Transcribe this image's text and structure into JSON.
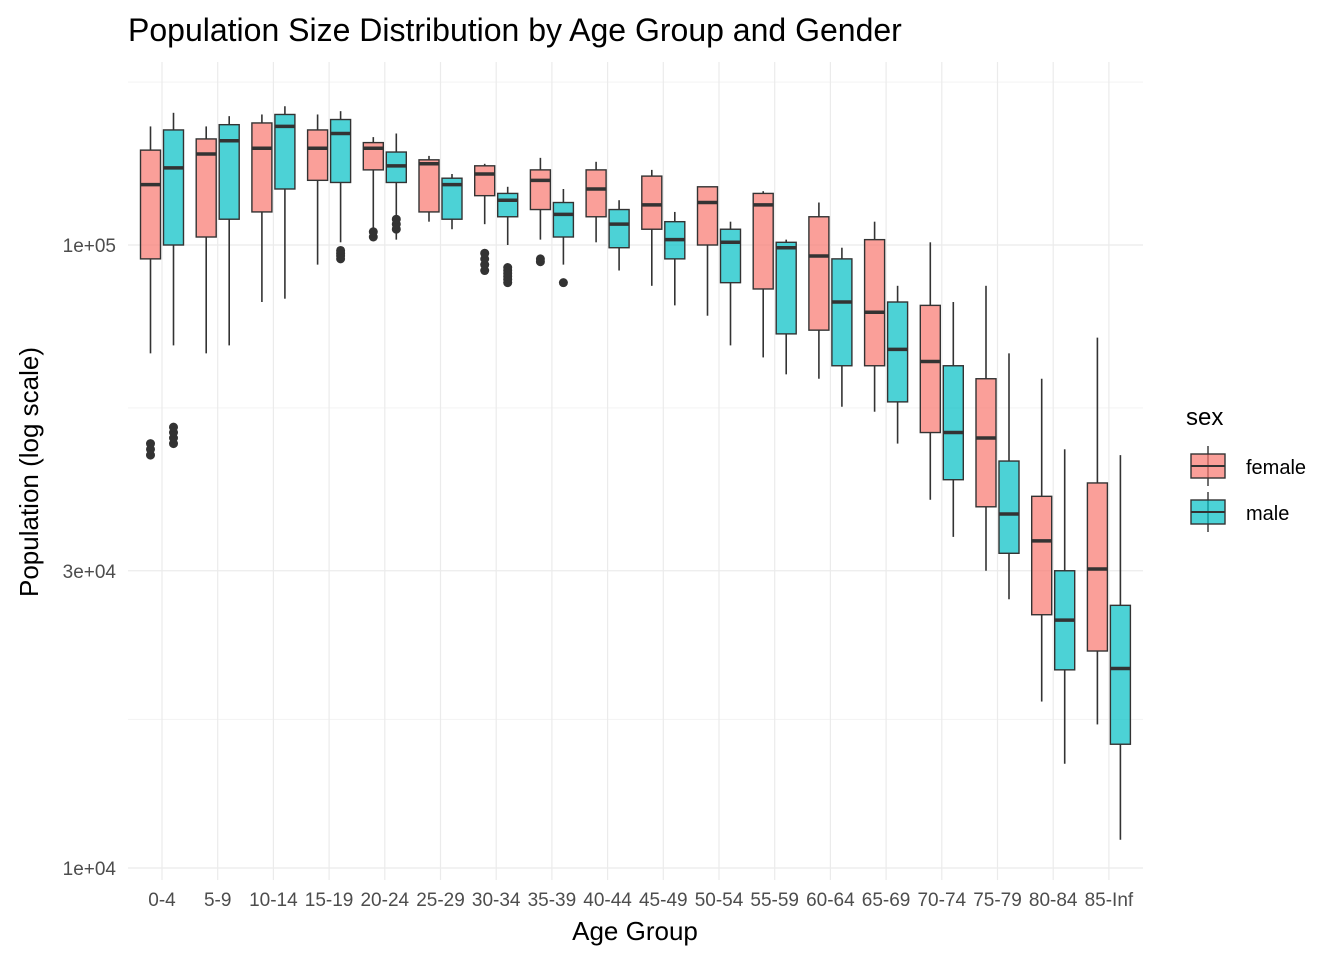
{
  "chart_data": {
    "type": "boxplot",
    "title": "Population Size Distribution by Age Group and Gender",
    "xlabel": "Age Group",
    "ylabel": "Population (log scale)",
    "y_scale": "log10",
    "y_ticks": [
      10000,
      30000,
      100000
    ],
    "y_tick_labels": [
      "1e+04",
      "3e+04",
      "1e+05"
    ],
    "ylim": [
      9800,
      170000
    ],
    "grid": true,
    "legend": {
      "title": "sex",
      "position": "right"
    },
    "categories": [
      "0-4",
      "5-9",
      "10-14",
      "15-19",
      "20-24",
      "25-29",
      "30-34",
      "35-39",
      "40-44",
      "45-49",
      "50-54",
      "55-59",
      "60-64",
      "65-69",
      "70-74",
      "75-79",
      "80-84",
      "85-Inf"
    ],
    "series": [
      {
        "name": "female",
        "color": "#F8766D",
        "boxes": [
          {
            "lower_whisker": 67000,
            "q1": 95000,
            "median": 125000,
            "q3": 142000,
            "upper_whisker": 155000,
            "outliers": [
              46000,
              47000,
              48000
            ]
          },
          {
            "lower_whisker": 67000,
            "q1": 103000,
            "median": 140000,
            "q3": 148000,
            "upper_whisker": 155000,
            "outliers": []
          },
          {
            "lower_whisker": 81000,
            "q1": 113000,
            "median": 143000,
            "q3": 157000,
            "upper_whisker": 162000,
            "outliers": []
          },
          {
            "lower_whisker": 93000,
            "q1": 127000,
            "median": 143000,
            "q3": 153000,
            "upper_whisker": 162000,
            "outliers": []
          },
          {
            "lower_whisker": 103000,
            "q1": 132000,
            "median": 143000,
            "q3": 146000,
            "upper_whisker": 149000,
            "outliers": [
              103000,
              105000
            ]
          },
          {
            "lower_whisker": 109000,
            "q1": 113000,
            "median": 135000,
            "q3": 137000,
            "upper_whisker": 139000,
            "outliers": []
          },
          {
            "lower_whisker": 108000,
            "q1": 120000,
            "median": 130000,
            "q3": 134000,
            "upper_whisker": 135000,
            "outliers": [
              91000,
              93000,
              95000,
              97000
            ]
          },
          {
            "lower_whisker": 102000,
            "q1": 114000,
            "median": 127000,
            "q3": 132000,
            "upper_whisker": 138000,
            "outliers": [
              94000,
              95000
            ]
          },
          {
            "lower_whisker": 101000,
            "q1": 111000,
            "median": 123000,
            "q3": 132000,
            "upper_whisker": 136000,
            "outliers": []
          },
          {
            "lower_whisker": 86000,
            "q1": 106000,
            "median": 116000,
            "q3": 129000,
            "upper_whisker": 132000,
            "outliers": []
          },
          {
            "lower_whisker": 77000,
            "q1": 100000,
            "median": 117000,
            "q3": 124000,
            "upper_whisker": 124000,
            "outliers": []
          },
          {
            "lower_whisker": 66000,
            "q1": 85000,
            "median": 116000,
            "q3": 121000,
            "upper_whisker": 122000,
            "outliers": []
          },
          {
            "lower_whisker": 61000,
            "q1": 73000,
            "median": 96000,
            "q3": 111000,
            "upper_whisker": 117000,
            "outliers": []
          },
          {
            "lower_whisker": 54000,
            "q1": 64000,
            "median": 78000,
            "q3": 102000,
            "upper_whisker": 109000,
            "outliers": []
          },
          {
            "lower_whisker": 39000,
            "q1": 50000,
            "median": 65000,
            "q3": 80000,
            "upper_whisker": 101000,
            "outliers": []
          },
          {
            "lower_whisker": 30000,
            "q1": 38000,
            "median": 49000,
            "q3": 61000,
            "upper_whisker": 86000,
            "outliers": []
          },
          {
            "lower_whisker": 18500,
            "q1": 25500,
            "median": 33500,
            "q3": 39500,
            "upper_whisker": 61000,
            "outliers": []
          },
          {
            "lower_whisker": 17000,
            "q1": 22300,
            "median": 30200,
            "q3": 41500,
            "upper_whisker": 71000,
            "outliers": []
          }
        ]
      },
      {
        "name": "male",
        "color": "#00BFC4",
        "boxes": [
          {
            "lower_whisker": 69000,
            "q1": 100000,
            "median": 133000,
            "q3": 153000,
            "upper_whisker": 163000,
            "outliers": [
              48000,
              49000,
              50000,
              51000
            ]
          },
          {
            "lower_whisker": 69000,
            "q1": 110000,
            "median": 147000,
            "q3": 156000,
            "upper_whisker": 161000,
            "outliers": []
          },
          {
            "lower_whisker": 82000,
            "q1": 123000,
            "median": 155000,
            "q3": 162000,
            "upper_whisker": 167000,
            "outliers": []
          },
          {
            "lower_whisker": 101000,
            "q1": 126000,
            "median": 151000,
            "q3": 159000,
            "upper_whisker": 164000,
            "outliers": [
              95000,
              96000,
              97000,
              98000
            ]
          },
          {
            "lower_whisker": 102000,
            "q1": 126000,
            "median": 134000,
            "q3": 141000,
            "upper_whisker": 151000,
            "outliers": [
              106000,
              108000,
              110000
            ]
          },
          {
            "lower_whisker": 106000,
            "q1": 110000,
            "median": 125000,
            "q3": 128000,
            "upper_whisker": 130000,
            "outliers": []
          },
          {
            "lower_whisker": 100000,
            "q1": 111000,
            "median": 118000,
            "q3": 121000,
            "upper_whisker": 124000,
            "outliers": [
              87000,
              88000,
              89000,
              90000,
              91000,
              92000
            ]
          },
          {
            "lower_whisker": 93000,
            "q1": 103000,
            "median": 112000,
            "q3": 117000,
            "upper_whisker": 123000,
            "outliers": [
              87000
            ]
          },
          {
            "lower_whisker": 91000,
            "q1": 99000,
            "median": 108000,
            "q3": 114000,
            "upper_whisker": 118000,
            "outliers": []
          },
          {
            "lower_whisker": 80000,
            "q1": 95000,
            "median": 102000,
            "q3": 109000,
            "upper_whisker": 113000,
            "outliers": []
          },
          {
            "lower_whisker": 69000,
            "q1": 87000,
            "median": 101000,
            "q3": 106000,
            "upper_whisker": 109000,
            "outliers": []
          },
          {
            "lower_whisker": 62000,
            "q1": 72000,
            "median": 99000,
            "q3": 101000,
            "upper_whisker": 102000,
            "outliers": []
          },
          {
            "lower_whisker": 55000,
            "q1": 64000,
            "median": 81000,
            "q3": 95000,
            "upper_whisker": 99000,
            "outliers": []
          },
          {
            "lower_whisker": 48000,
            "q1": 56000,
            "median": 68000,
            "q3": 81000,
            "upper_whisker": 86000,
            "outliers": []
          },
          {
            "lower_whisker": 34000,
            "q1": 42000,
            "median": 50000,
            "q3": 64000,
            "upper_whisker": 81000,
            "outliers": []
          },
          {
            "lower_whisker": 27000,
            "q1": 32000,
            "median": 37000,
            "q3": 45000,
            "upper_whisker": 67000,
            "outliers": []
          },
          {
            "lower_whisker": 14700,
            "q1": 20800,
            "median": 25000,
            "q3": 30000,
            "upper_whisker": 47000,
            "outliers": []
          },
          {
            "lower_whisker": 11100,
            "q1": 15800,
            "median": 20900,
            "q3": 26400,
            "upper_whisker": 46000,
            "outliers": []
          }
        ]
      }
    ]
  }
}
